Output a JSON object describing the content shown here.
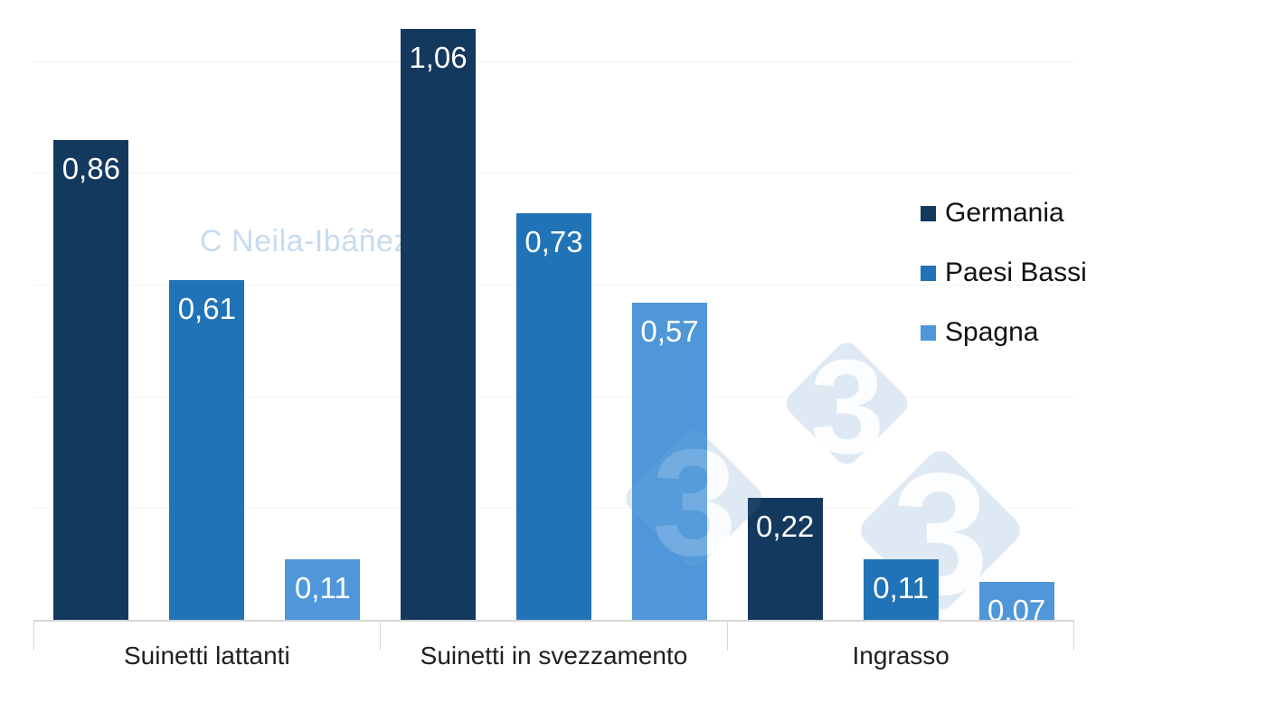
{
  "chart_data": {
    "type": "bar",
    "title": "",
    "categories": [
      "Suinetti lattanti",
      "Suinetti in svezzamento",
      "Ingrasso"
    ],
    "series": [
      {
        "name": "Germania",
        "color": "#14395f",
        "values": [
          0.86,
          1.06,
          0.22
        ],
        "value_labels": [
          "0,86",
          "1,06",
          "0,22"
        ]
      },
      {
        "name": "Paesi Bassi",
        "color": "#2173b8",
        "values": [
          0.61,
          0.73,
          0.11
        ],
        "value_labels": [
          "0,61",
          "0,73",
          "0,11"
        ]
      },
      {
        "name": "Spagna",
        "color": "#4f97d9",
        "values": [
          0.11,
          0.57,
          0.07
        ],
        "value_labels": [
          "0,11",
          "0,57",
          "0,07"
        ]
      }
    ],
    "ylim": [
      0,
      1.1
    ],
    "gridline_values": [
      0.2,
      0.4,
      0.6,
      0.8,
      1.0
    ],
    "grid": "very faint horizontal gridlines, no y-axis labels",
    "legend_position": "right",
    "value_labels_position": "inside top of bar, white, decimal comma",
    "axis": {
      "line_color": "#d6d6d6",
      "tick_color": "#d6d6d6",
      "category_label_color": "#1f1f1f"
    }
  },
  "watermark": {
    "author_text": "C Neila-Ibáñez",
    "author_color": "#c6dbf0",
    "logo": {
      "digits": [
        "3",
        "3",
        "3"
      ],
      "diamond_color": "#dfe9f4",
      "digit_color": "#ffffff"
    }
  },
  "background_color": "#ffffff"
}
